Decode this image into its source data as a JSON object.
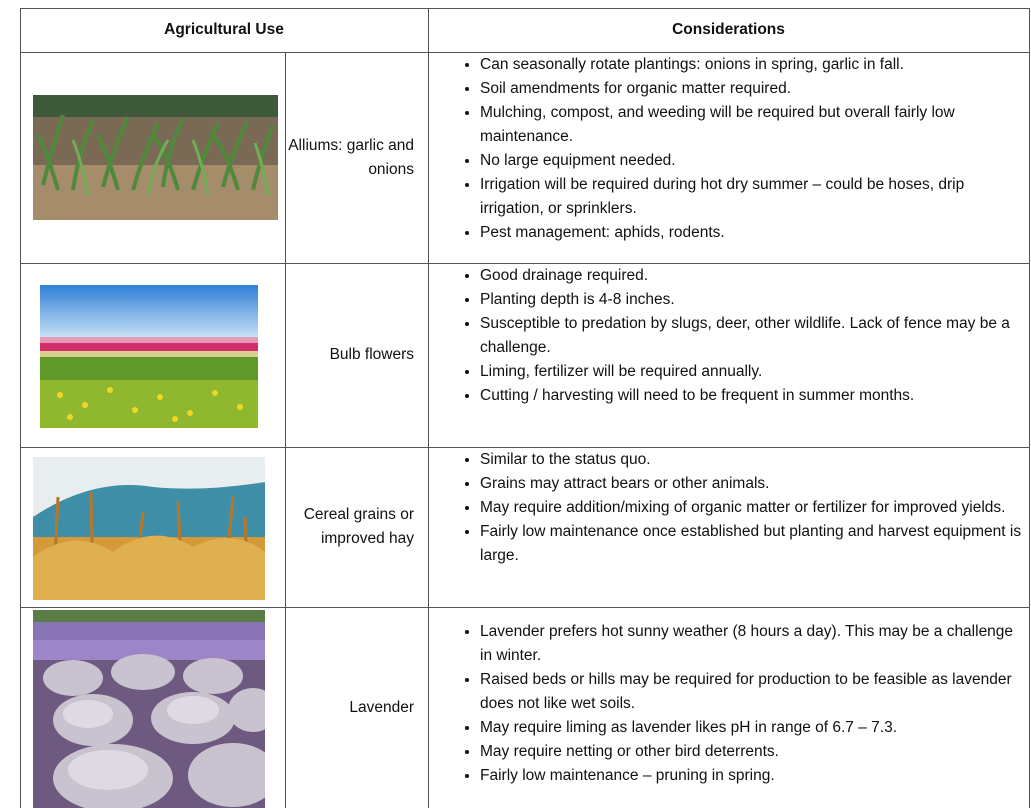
{
  "table": {
    "header": [
      "Agricultural Use",
      "Considerations"
    ],
    "rows": [
      {
        "use": "Alliums: garlic and onions",
        "considerations": [
          "Can seasonally rotate plantings: onions in spring, garlic in fall.",
          "Soil amendments for organic matter required.",
          "Mulching, compost, and weeding will be required but overall fairly low maintenance.",
          "No large equipment needed.",
          "Irrigation will be required during hot dry summer – could be hoses, drip irrigation, or sprinklers.",
          "Pest management: aphids, rodents."
        ]
      },
      {
        "use": "Bulb flowers",
        "considerations": [
          "Good drainage required.",
          "Planting depth is 4-8 inches.",
          "Susceptible to predation by slugs, deer, other wildlife. Lack of fence may be a challenge.",
          "Liming, fertilizer will be required annually.",
          "Cutting / harvesting will need to be frequent in summer months."
        ]
      },
      {
        "use": "Cereal grains or improved hay",
        "considerations": [
          "Similar to the status quo.",
          "Grains may attract bears or other animals.",
          "May require addition/mixing of organic matter or fertilizer for improved yields.",
          "Fairly low maintenance once established but planting and harvest equipment is large."
        ]
      },
      {
        "use": "Lavender",
        "considerations": [
          "Lavender prefers hot sunny weather (8 hours a day). This may be a challenge in winter.",
          "Raised beds or hills may be required for production to be feasible as lavender does not like wet soils.",
          "May require liming as lavender likes pH in range of 6.7 – 7.3.",
          "May require netting or other bird deterrents.",
          "Fairly low maintenance – pruning in spring."
        ]
      }
    ]
  }
}
